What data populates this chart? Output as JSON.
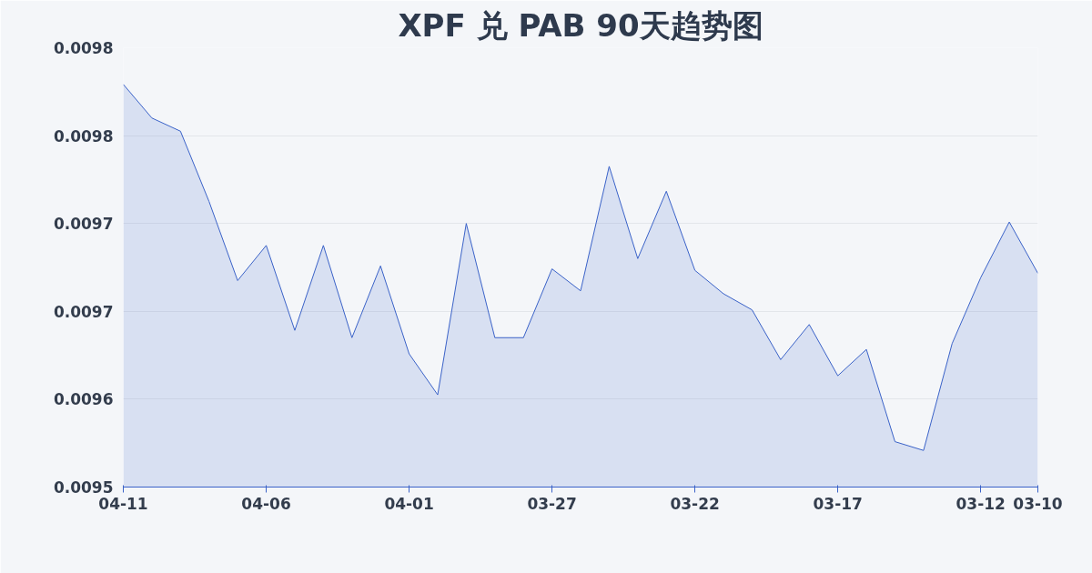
{
  "chart_data": {
    "type": "area",
    "title": "XPF 兑 PAB 90天趋势图",
    "categories": [
      "04-11",
      null,
      null,
      null,
      null,
      "04-06",
      null,
      null,
      null,
      null,
      "04-01",
      null,
      null,
      null,
      null,
      "03-27",
      null,
      null,
      null,
      null,
      "03-22",
      null,
      null,
      null,
      null,
      "03-17",
      null,
      null,
      null,
      null,
      "03-12",
      null,
      "03-10"
    ],
    "series": [
      {
        "color": "#3a62c8",
        "values": [
          0.009815,
          0.009792,
          0.009783,
          0.009735,
          0.009681,
          0.009705,
          0.009647,
          0.009705,
          0.009642,
          0.009691,
          0.009631,
          0.009603,
          0.00972,
          0.009642,
          0.009642,
          0.009689,
          0.009674,
          0.009759,
          0.009696,
          0.009742,
          0.009688,
          0.009672,
          0.009661,
          0.009627,
          0.009651,
          0.009616,
          0.009634,
          0.009571,
          0.009565,
          0.009638,
          0.009683,
          0.009721,
          0.009686
        ]
      }
    ],
    "ylim": [
      0.00954,
      0.00984
    ],
    "yticks": [
      {
        "value": 0.00954,
        "label": "0.0095"
      },
      {
        "value": 0.0096,
        "label": "0.0096"
      },
      {
        "value": 0.00966,
        "label": "0.0097"
      },
      {
        "value": 0.00972,
        "label": "0.0097"
      },
      {
        "value": 0.00978,
        "label": "0.0098"
      },
      {
        "value": 0.00984,
        "label": "0.0098"
      }
    ],
    "grid": "y"
  }
}
